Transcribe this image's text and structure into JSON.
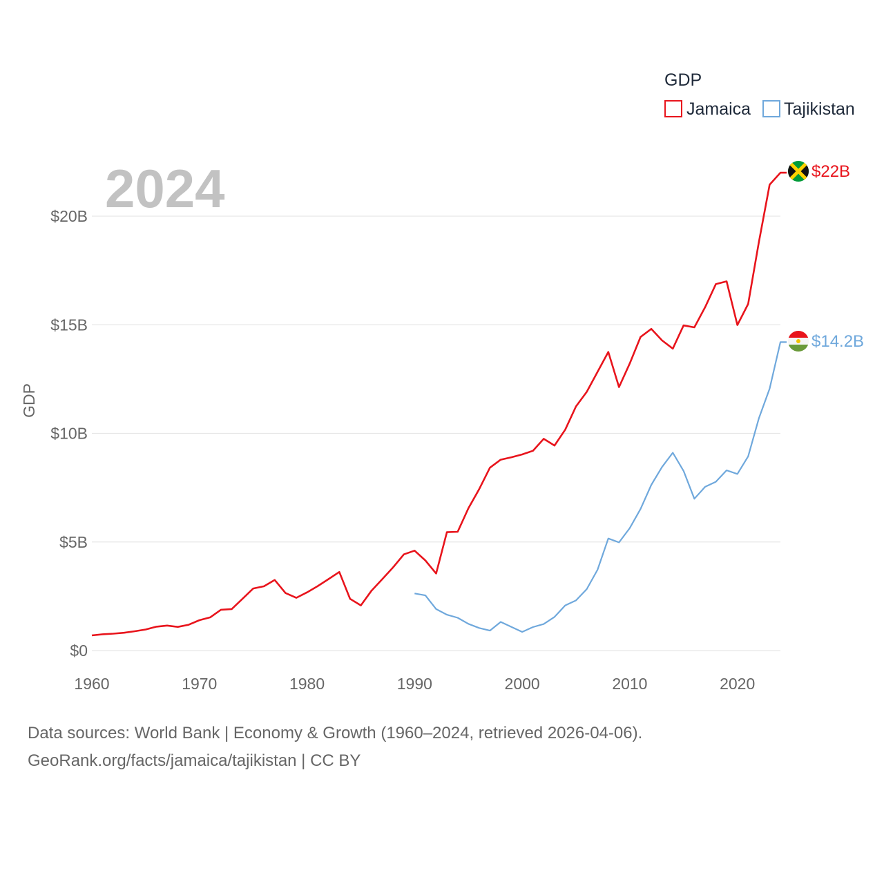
{
  "colors": {
    "jamaica": "#e8141c",
    "tajikistan": "#6fa8dc",
    "grid": "#e6e6e6",
    "tick": "#666666"
  },
  "chart_data": {
    "type": "line",
    "title": "GDP",
    "year_label": "2024",
    "ylabel": "GDP",
    "xlabel": "",
    "xlim": [
      1960,
      2024
    ],
    "ylim": [
      0,
      20
    ],
    "x_ticks": [
      "1960",
      "1970",
      "1980",
      "1990",
      "2000",
      "2010",
      "2020"
    ],
    "y_ticks": [
      {
        "value": 0,
        "label": "$0"
      },
      {
        "value": 5,
        "label": "$5B"
      },
      {
        "value": 10,
        "label": "$10B"
      },
      {
        "value": 15,
        "label": "$15B"
      },
      {
        "value": 20,
        "label": "$20B"
      }
    ],
    "unit": "billions USD",
    "series": [
      {
        "name": "Jamaica",
        "color": "#e8141c",
        "end_label": "$22B",
        "start_year": 1960,
        "values": [
          0.7,
          0.75,
          0.78,
          0.82,
          0.89,
          0.97,
          1.1,
          1.15,
          1.09,
          1.19,
          1.4,
          1.53,
          1.88,
          1.91,
          2.38,
          2.86,
          2.96,
          3.25,
          2.65,
          2.43,
          2.68,
          2.97,
          3.29,
          3.62,
          2.38,
          2.08,
          2.76,
          3.29,
          3.83,
          4.43,
          4.6,
          4.15,
          3.55,
          5.45,
          5.47,
          6.55,
          7.43,
          8.42,
          8.79,
          8.9,
          9.03,
          9.2,
          9.75,
          9.44,
          10.17,
          11.24,
          11.91,
          12.83,
          13.75,
          12.13,
          13.22,
          14.44,
          14.81,
          14.28,
          13.9,
          14.97,
          14.88,
          15.81,
          16.87,
          17.0,
          14.99,
          15.96,
          18.8,
          21.45,
          22.0
        ]
      },
      {
        "name": "Tajikistan",
        "color": "#6fa8dc",
        "end_label": "$14.2B",
        "start_year": 1990,
        "values": [
          2.63,
          2.54,
          1.91,
          1.65,
          1.51,
          1.23,
          1.04,
          0.92,
          1.32,
          1.09,
          0.86,
          1.08,
          1.22,
          1.55,
          2.08,
          2.31,
          2.83,
          3.72,
          5.16,
          4.98,
          5.64,
          6.52,
          7.63,
          8.45,
          9.11,
          8.27,
          6.99,
          7.54,
          7.77,
          8.3,
          8.13,
          8.94,
          10.69,
          12.06,
          14.2
        ]
      }
    ],
    "legend": {
      "placement": "top-right",
      "entries": [
        "Jamaica",
        "Tajikistan"
      ]
    }
  },
  "source": {
    "line1": "Data sources: World Bank | Economy & Growth (1960–2024, retrieved 2026-04-06).",
    "line2": "GeoRank.org/facts/jamaica/tajikistan | CC BY"
  }
}
